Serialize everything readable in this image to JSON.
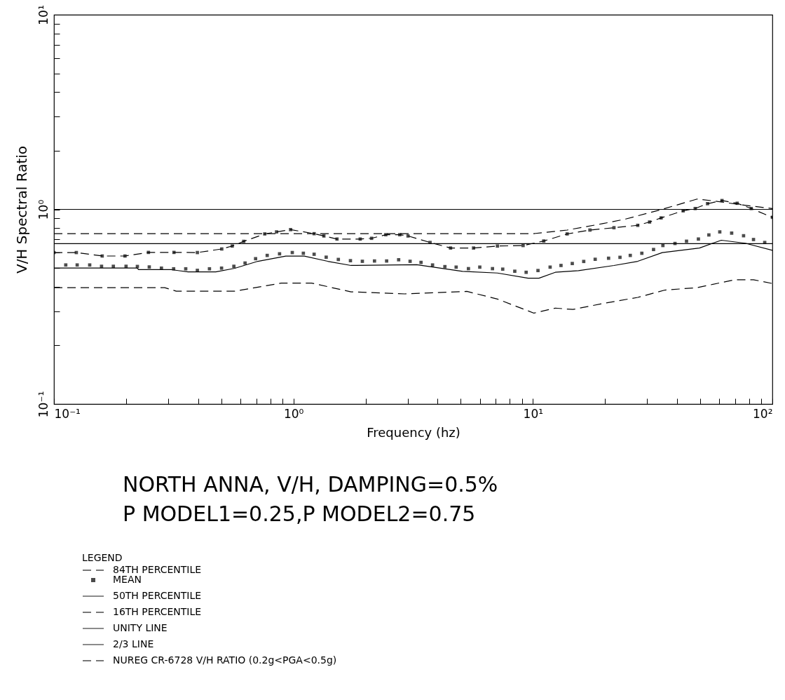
{
  "chart_data": {
    "type": "line",
    "title": "NORTH ANNA, V/H, DAMPING=0.5%",
    "subtitle": "P MODEL1=0.25,P MODEL2=0.75",
    "xlabel": "Frequency (hz)",
    "ylabel": "V/H Spectral Ratio",
    "legend_title": "LEGEND",
    "legend": "bottom left",
    "grid": false,
    "log": "xy",
    "xlim": [
      0.1,
      100
    ],
    "ylim": [
      0.1,
      10
    ],
    "xticks": [
      {
        "value": 0.1,
        "label": "10⁻¹"
      },
      {
        "value": 0.2,
        "label": null
      },
      {
        "value": 0.3,
        "label": null
      },
      {
        "value": 0.4,
        "label": null
      },
      {
        "value": 0.5,
        "label": null
      },
      {
        "value": 0.6,
        "label": null
      },
      {
        "value": 0.7,
        "label": null
      },
      {
        "value": 0.8,
        "label": null
      },
      {
        "value": 0.9,
        "label": null
      },
      {
        "value": 1,
        "label": "10⁰"
      },
      {
        "value": 2,
        "label": null
      },
      {
        "value": 3,
        "label": null
      },
      {
        "value": 4,
        "label": null
      },
      {
        "value": 5,
        "label": null
      },
      {
        "value": 6,
        "label": null
      },
      {
        "value": 7,
        "label": null
      },
      {
        "value": 8,
        "label": null
      },
      {
        "value": 9,
        "label": null
      },
      {
        "value": 10,
        "label": "10¹"
      },
      {
        "value": 20,
        "label": null
      },
      {
        "value": 30,
        "label": null
      },
      {
        "value": 40,
        "label": null
      },
      {
        "value": 50,
        "label": null
      },
      {
        "value": 60,
        "label": null
      },
      {
        "value": 70,
        "label": null
      },
      {
        "value": 80,
        "label": null
      },
      {
        "value": 90,
        "label": null
      },
      {
        "value": 100,
        "label": "10²"
      }
    ],
    "yticks": [
      {
        "value": 0.1,
        "label": "10⁻¹"
      },
      {
        "value": 0.2,
        "label": null
      },
      {
        "value": 0.3,
        "label": null
      },
      {
        "value": 0.4,
        "label": null
      },
      {
        "value": 0.5,
        "label": null
      },
      {
        "value": 0.6,
        "label": null
      },
      {
        "value": 0.7,
        "label": null
      },
      {
        "value": 0.8,
        "label": null
      },
      {
        "value": 0.9,
        "label": null
      },
      {
        "value": 1,
        "label": "10⁰"
      },
      {
        "value": 2,
        "label": null
      },
      {
        "value": 3,
        "label": null
      },
      {
        "value": 4,
        "label": null
      },
      {
        "value": 5,
        "label": null
      },
      {
        "value": 6,
        "label": null
      },
      {
        "value": 7,
        "label": null
      },
      {
        "value": 8,
        "label": null
      },
      {
        "value": 9,
        "label": null
      },
      {
        "value": 10,
        "label": "10¹"
      }
    ],
    "series": [
      {
        "name": "84TH PERCENTILE",
        "color": "#000000",
        "line_style": "dashed",
        "marker": "square",
        "x": [
          0.1,
          0.124,
          0.159,
          0.198,
          0.248,
          0.317,
          0.397,
          0.502,
          0.555,
          0.62,
          0.759,
          0.85,
          0.973,
          1.22,
          1.34,
          1.52,
          1.9,
          2.12,
          2.43,
          2.78,
          3.01,
          3.72,
          4.53,
          5.65,
          7.11,
          9.1,
          11.1,
          13.9,
          17.3,
          21.8,
          27.4,
          30.7,
          34.3,
          42.4,
          47.6,
          53.6,
          61.6,
          71.3,
          81.6,
          100
        ],
        "values": [
          0.6,
          0.6,
          0.576,
          0.576,
          0.601,
          0.601,
          0.6,
          0.626,
          0.648,
          0.685,
          0.748,
          0.766,
          0.787,
          0.75,
          0.73,
          0.704,
          0.704,
          0.71,
          0.741,
          0.741,
          0.73,
          0.676,
          0.633,
          0.633,
          0.648,
          0.652,
          0.688,
          0.748,
          0.783,
          0.805,
          0.828,
          0.861,
          0.904,
          0.983,
          1.01,
          1.07,
          1.11,
          1.075,
          1.01,
          0.91
        ]
      },
      {
        "name": "MEAN",
        "type": "scatter",
        "color": "#000000",
        "marker": "square",
        "x": [
          0.112,
          0.125,
          0.141,
          0.158,
          0.177,
          0.2,
          0.223,
          0.25,
          0.281,
          0.316,
          0.355,
          0.397,
          0.446,
          0.501,
          0.564,
          0.628,
          0.695,
          0.777,
          0.875,
          0.989,
          1.1,
          1.22,
          1.37,
          1.54,
          1.73,
          1.94,
          2.18,
          2.45,
          2.75,
          3.07,
          3.41,
          3.81,
          4.29,
          4.78,
          5.38,
          6.0,
          6.78,
          7.48,
          8.4,
          9.37,
          10.5,
          11.8,
          13.1,
          14.6,
          16.3,
          18.2,
          20.7,
          23.1,
          25.5,
          28.5,
          31.9,
          34.9,
          39.2,
          43.8,
          49.1,
          54.3,
          60.3,
          67.6,
          75.8,
          83.4,
          92.9
        ],
        "values": [
          0.518,
          0.518,
          0.518,
          0.51,
          0.51,
          0.51,
          0.509,
          0.506,
          0.499,
          0.495,
          0.495,
          0.486,
          0.495,
          0.499,
          0.51,
          0.53,
          0.558,
          0.58,
          0.591,
          0.6,
          0.595,
          0.588,
          0.568,
          0.553,
          0.545,
          0.541,
          0.543,
          0.543,
          0.551,
          0.541,
          0.534,
          0.518,
          0.508,
          0.505,
          0.496,
          0.505,
          0.496,
          0.493,
          0.481,
          0.475,
          0.485,
          0.505,
          0.515,
          0.527,
          0.54,
          0.554,
          0.561,
          0.567,
          0.58,
          0.595,
          0.622,
          0.652,
          0.668,
          0.686,
          0.704,
          0.739,
          0.766,
          0.755,
          0.732,
          0.7,
          0.676
        ]
      },
      {
        "name": "50TH PERCENTILE",
        "color": "#000000",
        "line_style": "solid",
        "x": [
          0.1,
          0.222,
          0.226,
          0.31,
          0.363,
          0.474,
          0.569,
          0.71,
          0.929,
          1.11,
          1.39,
          1.74,
          3.27,
          5.08,
          7.11,
          9.55,
          10.6,
          12.4,
          15.5,
          21.8,
          27.4,
          34.7,
          49.6,
          61.2,
          77,
          100
        ],
        "values": [
          0.5,
          0.5,
          0.49,
          0.49,
          0.477,
          0.477,
          0.498,
          0.541,
          0.575,
          0.575,
          0.541,
          0.515,
          0.52,
          0.48,
          0.471,
          0.443,
          0.443,
          0.475,
          0.484,
          0.515,
          0.541,
          0.6,
          0.633,
          0.694,
          0.67,
          0.616
        ]
      },
      {
        "name": "16TH PERCENTILE",
        "color": "#000000",
        "line_style": "dashed",
        "x": [
          0.1,
          0.29,
          0.324,
          0.569,
          0.89,
          1.19,
          1.74,
          2.91,
          5.3,
          7.11,
          10.1,
          12.4,
          14.7,
          19.5,
          27.4,
          35.6,
          48.5,
          69.6,
          83.4,
          100
        ],
        "values": [
          0.396,
          0.396,
          0.38,
          0.38,
          0.418,
          0.418,
          0.377,
          0.368,
          0.379,
          0.346,
          0.293,
          0.311,
          0.306,
          0.328,
          0.353,
          0.385,
          0.396,
          0.435,
          0.435,
          0.416
        ]
      },
      {
        "name": "UNITY LINE",
        "color": "#000000",
        "line_style": "solid",
        "x": [
          0.1,
          100
        ],
        "values": [
          1,
          1
        ]
      },
      {
        "name": "2/3 LINE",
        "color": "#000000",
        "line_style": "solid",
        "x": [
          0.1,
          100
        ],
        "values": [
          0.667,
          0.667
        ]
      },
      {
        "name": "NUREG CR-6728 V/H RATIO (0.2g<PGA<0.5g)",
        "color": "#000000",
        "line_style": "dashed",
        "x": [
          0.1,
          10,
          13.9,
          19.5,
          24.4,
          34.3,
          48.5,
          57,
          74.6,
          100
        ],
        "values": [
          0.75,
          0.75,
          0.783,
          0.844,
          0.892,
          0.997,
          1.13,
          1.105,
          1.054,
          1.01
        ]
      }
    ]
  }
}
